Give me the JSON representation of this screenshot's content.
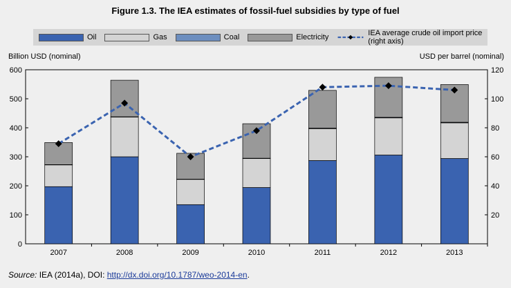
{
  "figure_title": "Figure 1.3. The IEA estimates of fossil-fuel subsidies by type of fuel",
  "source": {
    "label": "Source:",
    "text": " IEA (2014a), DOI: ",
    "link": "http://dx.doi.org/10.1787/weo-2014-en",
    "end": "."
  },
  "chart_data": {
    "type": "bar",
    "stacked": true,
    "title": "Figure 1.3. The IEA estimates of fossil-fuel subsidies by type of fuel",
    "categories": [
      "2007",
      "2008",
      "2009",
      "2010",
      "2011",
      "2012",
      "2013"
    ],
    "ylabel": "Billion USD (nominal)",
    "y2label": "USD per barrel (nominal)",
    "ylim": [
      0,
      600
    ],
    "yticks": [
      0,
      100,
      200,
      300,
      400,
      500,
      600
    ],
    "y2lim": [
      0,
      120
    ],
    "y2ticks": [
      20,
      40,
      60,
      80,
      100,
      120
    ],
    "grid": false,
    "legend_position": "top",
    "series": [
      {
        "name": "Oil",
        "color": "#3a63b0",
        "values": [
          197,
          300,
          135,
          194,
          287,
          306,
          294
        ]
      },
      {
        "name": "Gas",
        "color": "#d4d4d4",
        "values": [
          75,
          137,
          87,
          100,
          110,
          128,
          123
        ]
      },
      {
        "name": "Coal",
        "color": "#6c8ebf",
        "values": [
          1,
          1,
          1,
          1,
          2,
          2,
          2
        ]
      },
      {
        "name": "Electricity",
        "color": "#999999",
        "values": [
          76,
          126,
          89,
          119,
          130,
          138,
          130
        ]
      }
    ],
    "line_series": {
      "name": "IEA average crude oil import price (right axis)",
      "axis": "right",
      "color": "#3a63b0",
      "values": [
        69,
        97,
        60,
        78,
        108,
        109,
        106
      ]
    }
  }
}
